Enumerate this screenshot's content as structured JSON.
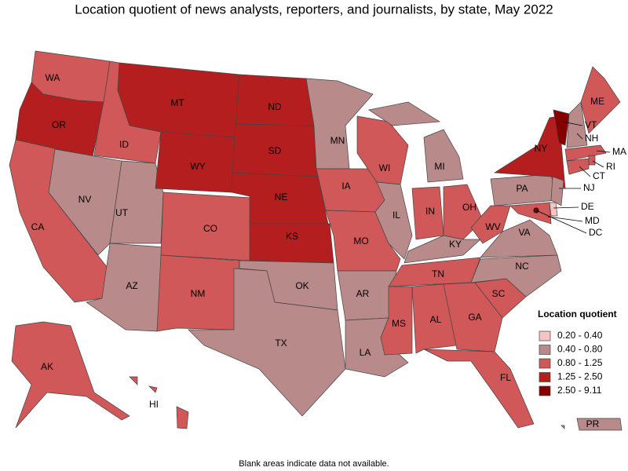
{
  "title": "Location quotient of news analysts, reporters, and journalists, by state, May 2022",
  "footnote": "Blank areas indicate data not available.",
  "legend": {
    "title": "Location quotient",
    "items": [
      {
        "label": "0.20 - 0.40",
        "color": "#f7c4c4"
      },
      {
        "label": "0.40 - 0.80",
        "color": "#b88a8a"
      },
      {
        "label": "0.80 - 1.25",
        "color": "#d05858"
      },
      {
        "label": "1.25 - 2.50",
        "color": "#b41e1e"
      },
      {
        "label": "2.50 - 9.11",
        "color": "#870000"
      }
    ]
  },
  "states": [
    {
      "label": "WA",
      "class": 2
    },
    {
      "label": "OR",
      "class": 3
    },
    {
      "label": "CA",
      "class": 2
    },
    {
      "label": "ID",
      "class": 2
    },
    {
      "label": "NV",
      "class": 1
    },
    {
      "label": "UT",
      "class": 1
    },
    {
      "label": "AZ",
      "class": 1
    },
    {
      "label": "MT",
      "class": 3
    },
    {
      "label": "WY",
      "class": 3
    },
    {
      "label": "CO",
      "class": 2
    },
    {
      "label": "NM",
      "class": 2
    },
    {
      "label": "ND",
      "class": 3
    },
    {
      "label": "SD",
      "class": 3
    },
    {
      "label": "NE",
      "class": 3
    },
    {
      "label": "KS",
      "class": 3
    },
    {
      "label": "OK",
      "class": 1
    },
    {
      "label": "TX",
      "class": 1
    },
    {
      "label": "MN",
      "class": 1
    },
    {
      "label": "IA",
      "class": 2
    },
    {
      "label": "MO",
      "class": 2
    },
    {
      "label": "AR",
      "class": 1
    },
    {
      "label": "LA",
      "class": 1
    },
    {
      "label": "WI",
      "class": 2
    },
    {
      "label": "IL",
      "class": 1
    },
    {
      "label": "MI",
      "class": 1
    },
    {
      "label": "IN",
      "class": 2
    },
    {
      "label": "OH",
      "class": 2
    },
    {
      "label": "KY",
      "class": 1
    },
    {
      "label": "TN",
      "class": 2
    },
    {
      "label": "MS",
      "class": 2
    },
    {
      "label": "AL",
      "class": 2
    },
    {
      "label": "GA",
      "class": 2
    },
    {
      "label": "FL",
      "class": 2
    },
    {
      "label": "SC",
      "class": 2
    },
    {
      "label": "NC",
      "class": 1
    },
    {
      "label": "VA",
      "class": 1
    },
    {
      "label": "WV",
      "class": 2
    },
    {
      "label": "PA",
      "class": 1
    },
    {
      "label": "NY",
      "class": 3
    },
    {
      "label": "VT",
      "class": 4
    },
    {
      "label": "NH",
      "class": 1
    },
    {
      "label": "ME",
      "class": 2
    },
    {
      "label": "MA",
      "class": 2
    },
    {
      "label": "RI",
      "class": 2
    },
    {
      "label": "CT",
      "class": 2
    },
    {
      "label": "NJ",
      "class": 1
    },
    {
      "label": "DE",
      "class": 0
    },
    {
      "label": "MD",
      "class": 2
    },
    {
      "label": "DC",
      "class": 4
    },
    {
      "label": "AK",
      "class": 2
    },
    {
      "label": "HI",
      "class": 2
    },
    {
      "label": "PR",
      "class": 1
    }
  ]
}
